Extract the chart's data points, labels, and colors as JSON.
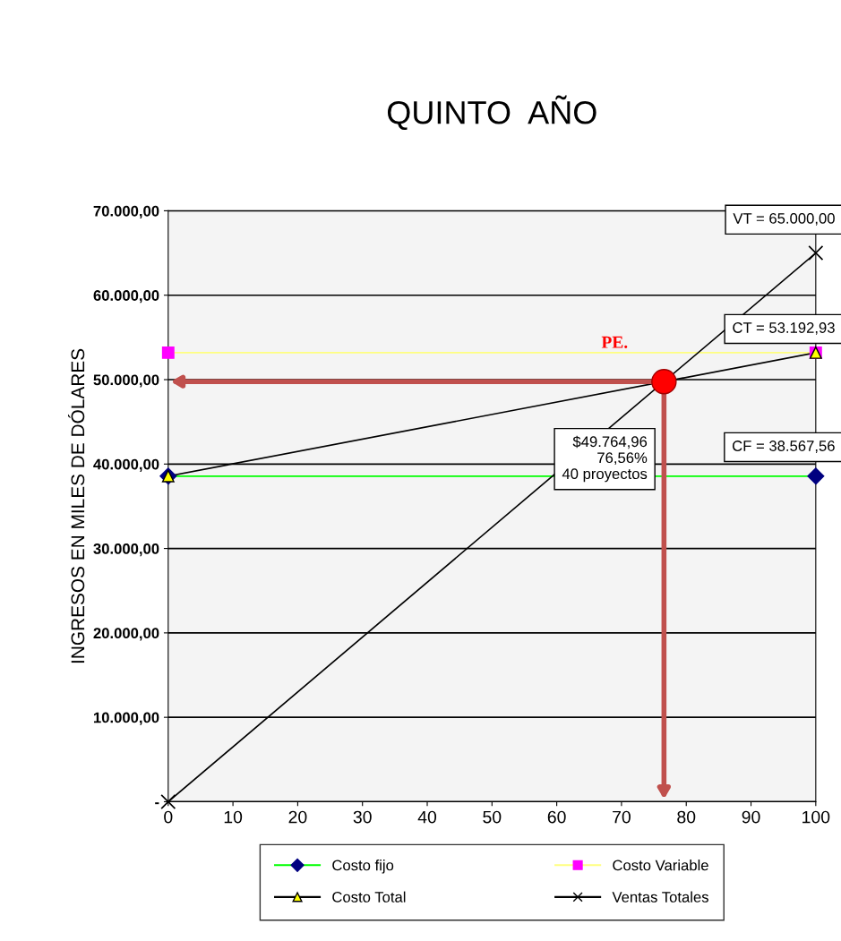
{
  "chart_data": {
    "type": "line",
    "title": "QUINTO  AÑO",
    "ylabel": "INGRESOS EN MILES DE DÓLARES",
    "xlim": [
      0,
      100
    ],
    "xticks": [
      0,
      10,
      20,
      30,
      40,
      50,
      60,
      70,
      80,
      90,
      100
    ],
    "ylim": [
      0,
      70000
    ],
    "yticks": [
      {
        "value": 0,
        "label": "-"
      },
      {
        "value": 10000,
        "label": "10.000,00"
      },
      {
        "value": 20000,
        "label": "20.000,00"
      },
      {
        "value": 30000,
        "label": "30.000,00"
      },
      {
        "value": 40000,
        "label": "40.000,00"
      },
      {
        "value": 50000,
        "label": "50.000,00"
      },
      {
        "value": 60000,
        "label": "60.000,00"
      },
      {
        "value": 70000,
        "label": "70.000,00"
      }
    ],
    "grid": "y",
    "legend": "bottom",
    "series": [
      {
        "name": "Costo fijo",
        "color": "#00ff00",
        "colors": [
          "#000080",
          "#000080"
        ],
        "marker": "diamond",
        "x": [
          0,
          100
        ],
        "values": [
          38567.56,
          38567.56
        ]
      },
      {
        "name": "Costo Variable",
        "color": "#ffff80",
        "colors": [
          "#ff00ff",
          "#ff00ff"
        ],
        "marker": "square",
        "x": [
          0,
          100
        ],
        "values": [
          53192.93,
          53192.93
        ]
      },
      {
        "name": "Costo Total",
        "color": "#000000",
        "colors": [
          "#ffff00",
          "#ffff00"
        ],
        "marker": "triangle",
        "x": [
          0,
          100
        ],
        "values": [
          38567.56,
          53192.93
        ]
      },
      {
        "name": "Ventas Totales",
        "color": "#000000",
        "colors": [
          "#000000",
          "#000000"
        ],
        "marker": "cross",
        "x": [
          0,
          100
        ],
        "values": [
          0,
          65000
        ]
      },
      {
        "type": "scatter",
        "color": "#ff0000",
        "marker": "circle",
        "x": [
          76.56
        ],
        "values": [
          49764.96
        ]
      }
    ],
    "annotations": [
      "VT = 65.000,00",
      "CT = 53.192,93",
      "CF = 38.567,56",
      "$49.764,96\n  76,56%\n40 proyectos",
      "PE."
    ]
  }
}
